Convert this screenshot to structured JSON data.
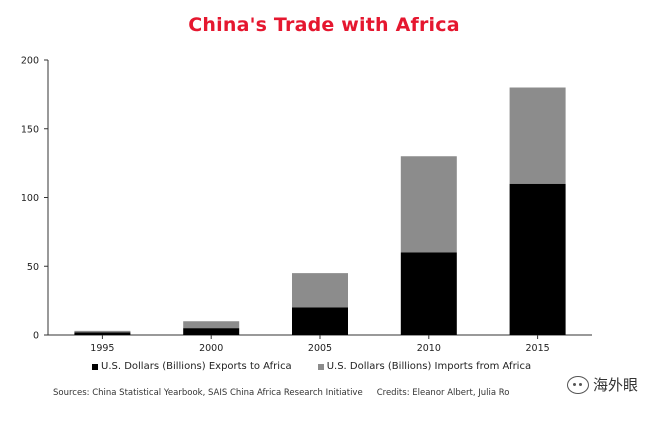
{
  "chart_data": {
    "type": "bar",
    "stacked": true,
    "title": "China's Trade with Africa",
    "categories": [
      "1995",
      "2000",
      "2005",
      "2010",
      "2015"
    ],
    "series": [
      {
        "name": "U.S. Dollars (Billions) Exports to Africa",
        "values": [
          2,
          5,
          20,
          60,
          110
        ],
        "color": "#000000"
      },
      {
        "name": "U.S. Dollars (Billions) Imports from Africa",
        "values": [
          1,
          5,
          25,
          70,
          70
        ],
        "color": "#8c8c8c"
      }
    ],
    "ylim": [
      0,
      200
    ],
    "yticks": [
      0,
      50,
      100,
      150,
      200
    ],
    "grid": false,
    "legend_position": "bottom"
  },
  "footer": {
    "sources": "Sources: China Statistical Yearbook, SAIS China Africa Research Initiative",
    "credits": "Credits: Eleanor Albert, Julia Ro"
  },
  "watermark": {
    "text": "海外眼"
  }
}
